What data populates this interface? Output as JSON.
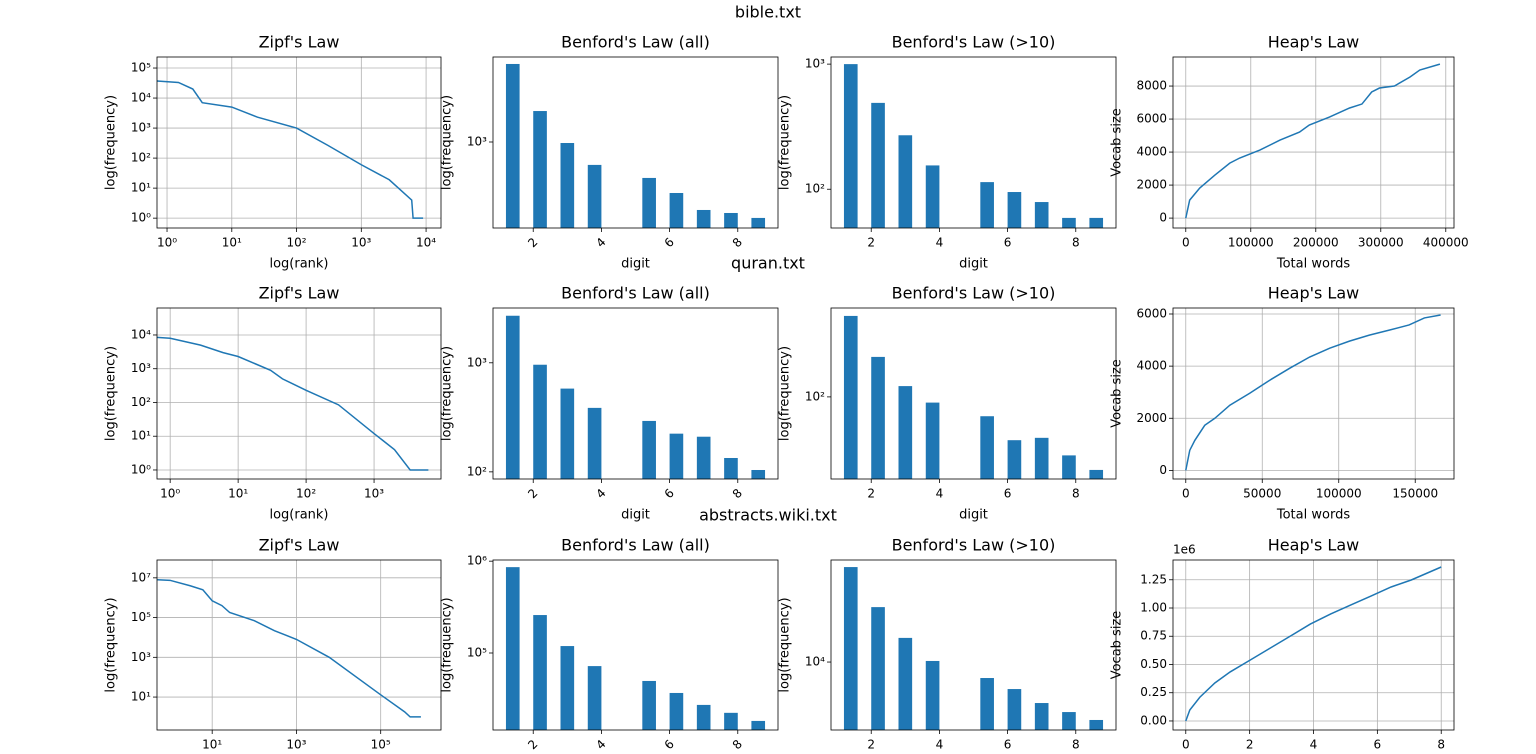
{
  "suptitles": [
    "bible.txt",
    "quran.txt",
    "abstracts.wiki.txt"
  ],
  "chart_data": [
    {
      "type": "line",
      "title": "Zipf's Law",
      "xlabel": "log(rank)",
      "ylabel": "log(frequency)",
      "xlog": true,
      "ylog": true,
      "grid": true,
      "color": "#1f77b4",
      "x": [
        0.7,
        1.5,
        2.5,
        3.5,
        10,
        25,
        100,
        300,
        1000,
        2700,
        6000,
        6300,
        9000
      ],
      "values": [
        37000,
        33000,
        20000,
        7000,
        5000,
        2300,
        1000,
        270,
        60,
        19,
        4,
        1,
        1
      ],
      "xlim": [
        0.7,
        17000
      ],
      "ylim": [
        0.47,
        233000
      ],
      "xticks": [
        {
          "value": 1,
          "label": "10⁰"
        },
        {
          "value": 10,
          "label": "10¹"
        },
        {
          "value": 100,
          "label": "10²"
        },
        {
          "value": 1000,
          "label": "10³"
        },
        {
          "value": 10000,
          "label": "10⁴"
        }
      ],
      "yticks": [
        {
          "value": 1,
          "label": "10⁰"
        },
        {
          "value": 10,
          "label": "10¹"
        },
        {
          "value": 100,
          "label": "10²"
        },
        {
          "value": 1000,
          "label": "10³"
        },
        {
          "value": 10000,
          "label": "10⁴"
        },
        {
          "value": 100000,
          "label": "10⁵"
        }
      ]
    },
    {
      "type": "histogram",
      "title": "Benford's Law (all)",
      "xlabel": "digit",
      "ylabel": "log(frequency)",
      "ylog": true,
      "grid": false,
      "color": "#1f77b4",
      "xtick_rotation": 45,
      "bins": [
        1,
        1.8,
        2.6,
        3.4,
        4.2,
        5,
        5.8,
        6.6,
        7.4,
        8.2,
        9
      ],
      "values": [
        6030,
        2040,
        977,
        590,
        0,
        437,
        309,
        209,
        195,
        174
      ],
      "xlim": [
        0.82,
        9.18
      ],
      "ylim": [
        138,
        7080
      ],
      "xticks": [
        2,
        4,
        6,
        8
      ],
      "yticks": [
        {
          "value": 1000,
          "label": "10³"
        }
      ]
    },
    {
      "type": "histogram",
      "title": "Benford's Law (>10)",
      "xlabel": "digit",
      "ylabel": "log(frequency)",
      "ylog": true,
      "grid": false,
      "color": "#1f77b4",
      "bins": [
        1,
        1.8,
        2.6,
        3.4,
        4.2,
        5,
        5.8,
        6.6,
        7.4,
        8.2,
        9
      ],
      "values": [
        1000,
        490,
        270,
        155,
        0,
        114,
        95,
        79,
        59,
        59
      ],
      "xlim": [
        0.82,
        9.18
      ],
      "ylim": [
        49,
        1140
      ],
      "xticks": [
        2,
        4,
        6,
        8
      ],
      "yticks": [
        {
          "value": 100,
          "label": "10²"
        },
        {
          "value": 1000,
          "label": "10³"
        }
      ]
    },
    {
      "type": "line",
      "title": "Heap's Law",
      "xlabel": "Total words",
      "ylabel": "Vocab size",
      "grid": true,
      "color": "#1f77b4",
      "x": [
        0,
        6000,
        21500,
        44600,
        67700,
        83000,
        114000,
        145000,
        175000,
        190000,
        221000,
        252000,
        271000,
        286000,
        298000,
        321000,
        345000,
        360000,
        391000
      ],
      "values": [
        0,
        1090,
        1820,
        2600,
        3330,
        3640,
        4120,
        4730,
        5210,
        5640,
        6120,
        6670,
        6910,
        7640,
        7880,
        8000,
        8550,
        8970,
        9330
      ],
      "xlim": [
        -19650,
        412650
      ],
      "ylim": [
        -600,
        9760
      ],
      "xticks": [
        0,
        100000,
        200000,
        300000,
        400000
      ],
      "yticks": [
        0,
        2000,
        4000,
        6000,
        8000
      ]
    },
    {
      "type": "line",
      "title": "Zipf's Law",
      "xlabel": "log(rank)",
      "ylabel": "log(frequency)",
      "xlog": true,
      "ylog": true,
      "grid": true,
      "color": "#1f77b4",
      "x": [
        0.64,
        1,
        2.8,
        6,
        10,
        30,
        45,
        100,
        300,
        1000,
        2000,
        3400,
        6300
      ],
      "values": [
        8500,
        8000,
        5000,
        3000,
        2300,
        900,
        500,
        230,
        85,
        12,
        4,
        1,
        1
      ],
      "xlim": [
        0.64,
        9660
      ],
      "ylim": [
        0.54,
        63000
      ],
      "xticks": [
        {
          "value": 1,
          "label": "10⁰"
        },
        {
          "value": 10,
          "label": "10¹"
        },
        {
          "value": 100,
          "label": "10²"
        },
        {
          "value": 1000,
          "label": "10³"
        }
      ],
      "yticks": [
        {
          "value": 1,
          "label": "10⁰"
        },
        {
          "value": 10,
          "label": "10¹"
        },
        {
          "value": 100,
          "label": "10²"
        },
        {
          "value": 1000,
          "label": "10³"
        },
        {
          "value": 10000,
          "label": "10⁴"
        }
      ]
    },
    {
      "type": "histogram",
      "title": "Benford's Law (all)",
      "xlabel": "digit",
      "ylabel": "log(frequency)",
      "ylog": true,
      "grid": false,
      "color": "#1f77b4",
      "xtick_rotation": 45,
      "bins": [
        1,
        1.8,
        2.6,
        3.4,
        4.2,
        5,
        5.8,
        6.6,
        7.4,
        8.2,
        9
      ],
      "values": [
        2700,
        960,
        580,
        386,
        0,
        293,
        224,
        210,
        134,
        104
      ],
      "xlim": [
        0.82,
        9.18
      ],
      "ylim": [
        86,
        3180
      ],
      "xticks": [
        2,
        4,
        6,
        8
      ],
      "yticks": [
        {
          "value": 100,
          "label": "10²"
        },
        {
          "value": 1000,
          "label": "10³"
        }
      ]
    },
    {
      "type": "histogram",
      "title": "Benford's Law (>10)",
      "xlabel": "digit",
      "ylabel": "log(frequency)",
      "ylog": true,
      "grid": false,
      "color": "#1f77b4",
      "bins": [
        1,
        1.8,
        2.6,
        3.4,
        4.2,
        5,
        5.8,
        6.6,
        7.4,
        8.2,
        9
      ],
      "values": [
        445,
        209,
        122,
        90,
        0,
        70,
        45,
        47,
        34,
        26
      ],
      "xlim": [
        0.82,
        9.18
      ],
      "ylim": [
        22,
        515
      ],
      "xticks": [
        2,
        4,
        6,
        8
      ],
      "yticks": [
        {
          "value": 100,
          "label": "10²"
        }
      ]
    },
    {
      "type": "line",
      "title": "Heap's Law",
      "xlabel": "Total words",
      "ylabel": "Vocab size",
      "grid": true,
      "color": "#1f77b4",
      "x": [
        0,
        2600,
        5900,
        12400,
        19000,
        28800,
        41800,
        54900,
        68000,
        81000,
        94100,
        107000,
        120000,
        133000,
        146000,
        156000,
        166600
      ],
      "values": [
        0,
        770,
        1150,
        1730,
        2000,
        2500,
        2960,
        3460,
        3920,
        4350,
        4690,
        4960,
        5190,
        5380,
        5580,
        5850,
        5960
      ],
      "xlim": [
        -8350,
        175350
      ],
      "ylim": [
        -330,
        6230
      ],
      "xticks": [
        0,
        50000,
        100000,
        150000
      ],
      "yticks": [
        0,
        2000,
        4000,
        6000
      ]
    },
    {
      "type": "line",
      "title": "Zipf's Law",
      "ylabel": "log(frequency)",
      "xlog": true,
      "ylog": true,
      "grid": true,
      "color": "#1f77b4",
      "x": [
        0.5,
        1,
        3,
        6,
        10,
        17,
        26,
        100,
        300,
        1000,
        6000,
        100000,
        370000,
        500000,
        900000
      ],
      "values": [
        8000000,
        7500000,
        4000000,
        2500000,
        700000,
        400000,
        180000,
        70000,
        22000,
        8000,
        1000,
        13,
        1.8,
        1,
        1
      ],
      "xlim": [
        0.49,
        2700000
      ],
      "ylim": [
        0.22,
        79000000
      ],
      "xticks": [
        {
          "value": 10,
          "label": "10¹"
        },
        {
          "value": 1000,
          "label": "10³"
        },
        {
          "value": 100000,
          "label": "10⁵"
        }
      ],
      "yticks": [
        {
          "value": 10,
          "label": "10¹"
        },
        {
          "value": 1000,
          "label": "10³"
        },
        {
          "value": 100000,
          "label": "10⁵"
        },
        {
          "value": 10000000,
          "label": "10⁷"
        }
      ]
    },
    {
      "type": "histogram",
      "title": "Benford's Law (all)",
      "ylabel": "log(frequency)",
      "ylog": true,
      "grid": false,
      "color": "#1f77b4",
      "xtick_rotation": 45,
      "bins": [
        1,
        1.8,
        2.6,
        3.4,
        4.2,
        5,
        5.8,
        6.6,
        7.4,
        8.2,
        9
      ],
      "values": [
        861000,
        259000,
        119000,
        72000,
        0,
        49600,
        36700,
        27200,
        22300,
        18200
      ],
      "xlim": [
        0.82,
        9.18
      ],
      "ylim": [
        14500,
        1030000
      ],
      "xticks": [
        2,
        4,
        6,
        8
      ],
      "yticks": [
        {
          "value": 100000,
          "label": "10⁵"
        },
        {
          "value": 1000000,
          "label": "10⁶"
        }
      ]
    },
    {
      "type": "histogram",
      "title": "Benford's Law (>10)",
      "ylabel": "log(frequency)",
      "ylog": true,
      "grid": false,
      "color": "#1f77b4",
      "bins": [
        1,
        1.8,
        2.6,
        3.4,
        4.2,
        5,
        5.8,
        6.6,
        7.4,
        8.2,
        9
      ],
      "values": [
        57500,
        27500,
        15600,
        10200,
        0,
        7450,
        6080,
        4700,
        3980,
        3440
      ],
      "xlim": [
        0.82,
        9.18
      ],
      "ylim": [
        2860,
        65500
      ],
      "xticks": [
        2,
        4,
        6,
        8
      ],
      "yticks": [
        {
          "value": 10000,
          "label": "10⁴"
        }
      ]
    },
    {
      "type": "line",
      "title": "Heap's Law",
      "ylabel": "Vocab size",
      "grid": true,
      "color": "#1f77b4",
      "y_offset_text": "1e6",
      "x": [
        0,
        0.126,
        0.44,
        0.91,
        1.39,
        2.02,
        2.65,
        3.28,
        3.9,
        4.54,
        5.17,
        5.8,
        6.43,
        7.06,
        8
      ],
      "values": [
        0,
        0.097,
        0.21,
        0.336,
        0.434,
        0.54,
        0.646,
        0.752,
        0.858,
        0.947,
        1.027,
        1.106,
        1.186,
        1.248,
        1.363
      ],
      "xlim": [
        -0.4,
        8.4
      ],
      "ylim": [
        -0.08,
        1.425
      ],
      "xticks": [
        0,
        2,
        4,
        6,
        8
      ],
      "yticks": [
        {
          "value": 0,
          "label": "0.00"
        },
        0.25,
        {
          "value": 0.5,
          "label": "0.50"
        },
        0.75,
        {
          "value": 1,
          "label": "1.00"
        },
        1.25
      ]
    }
  ]
}
